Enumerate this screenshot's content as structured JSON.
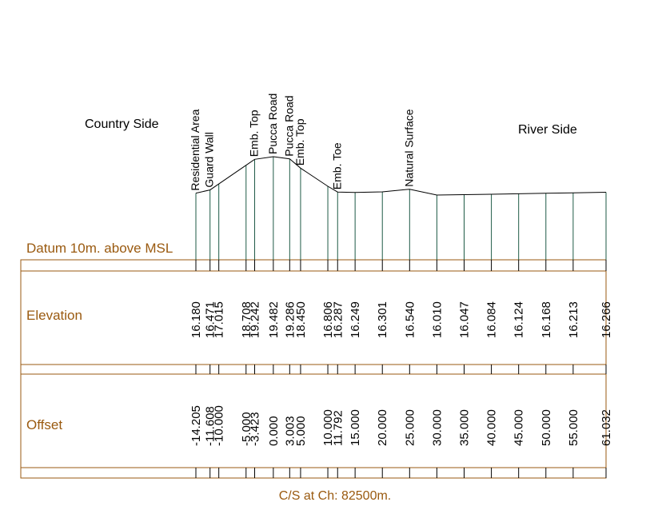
{
  "labels": {
    "country_side": "Country Side",
    "river_side": "River Side",
    "datum": "Datum 10m. above MSL",
    "elevation_row": "Elevation",
    "offset_row": "Offset",
    "caption": "C/S at Ch: 82500m."
  },
  "colors": {
    "band": "#9a5a10",
    "drop_line": "#1e5a46",
    "profile": "#000000"
  },
  "chart_data": {
    "type": "cross-section",
    "datum_elevation": 10,
    "points": [
      {
        "offset": -14.205,
        "offset_label": "-14.205",
        "elevation": 16.18,
        "elevation_label": "16.180",
        "feature": "Residential Area"
      },
      {
        "offset": -11.608,
        "offset_label": "-11.608",
        "elevation": 16.471,
        "elevation_label": "16.471",
        "feature": "Guard Wall"
      },
      {
        "offset": -10.0,
        "offset_label": "-10.000",
        "elevation": 17.015,
        "elevation_label": "17.015",
        "feature": ""
      },
      {
        "offset": -5.0,
        "offset_label": "-5.000",
        "elevation": 18.708,
        "elevation_label": "18.708",
        "feature": ""
      },
      {
        "offset": -3.423,
        "offset_label": "-3.423",
        "elevation": 19.242,
        "elevation_label": "19.242",
        "feature": "Emb. Top"
      },
      {
        "offset": 0.0,
        "offset_label": "0.000",
        "elevation": 19.482,
        "elevation_label": "19.482",
        "feature": "Pucca Road"
      },
      {
        "offset": 3.003,
        "offset_label": "3.003",
        "elevation": 19.286,
        "elevation_label": "19.286",
        "feature": "Pucca Road"
      },
      {
        "offset": 5.0,
        "offset_label": "5.000",
        "elevation": 18.45,
        "elevation_label": "18.450",
        "feature": "Emb. Top"
      },
      {
        "offset": 10.0,
        "offset_label": "10.000",
        "elevation": 16.806,
        "elevation_label": "16.806",
        "feature": ""
      },
      {
        "offset": 11.792,
        "offset_label": "11.792",
        "elevation": 16.287,
        "elevation_label": "16.287",
        "feature": "Emb. Toe"
      },
      {
        "offset": 15.0,
        "offset_label": "15.000",
        "elevation": 16.249,
        "elevation_label": "16.249",
        "feature": ""
      },
      {
        "offset": 20.0,
        "offset_label": "20.000",
        "elevation": 16.301,
        "elevation_label": "16.301",
        "feature": ""
      },
      {
        "offset": 25.0,
        "offset_label": "25.000",
        "elevation": 16.54,
        "elevation_label": "16.540",
        "feature": "Natural Surface"
      },
      {
        "offset": 30.0,
        "offset_label": "30.000",
        "elevation": 16.01,
        "elevation_label": "16.010",
        "feature": ""
      },
      {
        "offset": 35.0,
        "offset_label": "35.000",
        "elevation": 16.047,
        "elevation_label": "16.047",
        "feature": ""
      },
      {
        "offset": 40.0,
        "offset_label": "40.000",
        "elevation": 16.084,
        "elevation_label": "16.084",
        "feature": ""
      },
      {
        "offset": 45.0,
        "offset_label": "45.000",
        "elevation": 16.124,
        "elevation_label": "16.124",
        "feature": ""
      },
      {
        "offset": 50.0,
        "offset_label": "50.000",
        "elevation": 16.168,
        "elevation_label": "16.168",
        "feature": ""
      },
      {
        "offset": 55.0,
        "offset_label": "55.000",
        "elevation": 16.213,
        "elevation_label": "16.213",
        "feature": ""
      },
      {
        "offset": 61.032,
        "offset_label": "61.032",
        "elevation": 16.266,
        "elevation_label": "16.266",
        "feature": ""
      }
    ]
  }
}
